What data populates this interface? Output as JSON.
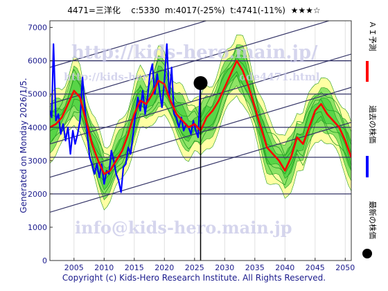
{
  "header": {
    "code_name": "4471=三洋化",
    "current": "c:5330",
    "mid": "m:4017(-25%)",
    "target": "t:4741(-11%)",
    "stars": "★★★☆"
  },
  "side_label": "Generated on Monday 2026/1/5.",
  "footer": "Copyright (c) Kids-Hero Research Institute. All Rights Reserved.",
  "watermarks": {
    "url": "http://kids-hero.main.jp/",
    "url_small": "http://kids-hero",
    "code_small": "ode4471.html",
    "email": "info@kids-hero.main.jp"
  },
  "legend": {
    "ai_forecast": "ＡＩ予測",
    "past_price": "過去の株価",
    "latest_price": "最新の株価"
  },
  "colors": {
    "ai_forecast": "#ff0000",
    "past_price": "#0000ff",
    "latest_price": "#000000",
    "band_green": "#33cc33",
    "band_yellow": "#ffff99",
    "trend_lines": "#333366",
    "axis_text": "#1a1a8c"
  },
  "chart_data": {
    "type": "line",
    "xlim": [
      2001,
      2051
    ],
    "ylim": [
      0,
      7200
    ],
    "x_ticks": [
      2005,
      2010,
      2015,
      2020,
      2025,
      2030,
      2035,
      2040,
      2045,
      2050
    ],
    "y_ticks": [
      0,
      1000,
      2000,
      3000,
      4000,
      5000,
      6000,
      7000
    ],
    "horizontal_lines": [
      2000,
      3100,
      4000,
      5000,
      6000
    ],
    "latest_point": {
      "x": 2026.0,
      "y": 5330
    },
    "series": [
      {
        "name": "過去の株価",
        "x": [
          2001,
          2001.3,
          2001.6,
          2002,
          2002.4,
          2002.8,
          2003.2,
          2003.6,
          2004,
          2004.4,
          2004.8,
          2005.2,
          2005.6,
          2006,
          2006.4,
          2006.8,
          2007.2,
          2007.6,
          2008,
          2008.4,
          2008.8,
          2009.2,
          2009.6,
          2010,
          2010.4,
          2010.8,
          2011.2,
          2011.6,
          2012,
          2012.4,
          2012.8,
          2013.2,
          2013.6,
          2014,
          2014.4,
          2014.8,
          2015.2,
          2015.6,
          2016,
          2016.4,
          2016.8,
          2017.2,
          2017.6,
          2018,
          2018.4,
          2018.8,
          2019.2,
          2019.6,
          2020,
          2020.4,
          2020.8,
          2021.2,
          2021.6,
          2022,
          2022.4,
          2022.8,
          2023.2,
          2023.6,
          2024,
          2024.4,
          2024.8,
          2025.2,
          2025.6,
          2026
        ],
        "values": [
          4500,
          4300,
          6500,
          4200,
          4400,
          3800,
          4100,
          3600,
          4000,
          3200,
          3900,
          3500,
          3800,
          4200,
          5500,
          4600,
          3800,
          3100,
          2900,
          2600,
          2900,
          2500,
          2900,
          2300,
          2700,
          2600,
          3300,
          3000,
          2600,
          2400,
          2050,
          2800,
          2900,
          3400,
          3200,
          3800,
          4400,
          4900,
          4500,
          5100,
          4400,
          4900,
          5600,
          5900,
          5000,
          5600,
          5100,
          4600,
          5400,
          6500,
          4900,
          5800,
          4400,
          4300,
          4000,
          4300,
          3900,
          4100,
          4000,
          3800,
          4200,
          3900,
          3700,
          5330
        ]
      },
      {
        "name": "ＡＩ予測",
        "x": [
          2001,
          2002,
          2003,
          2004,
          2005,
          2006,
          2007,
          2008,
          2009,
          2010,
          2011,
          2012,
          2013,
          2014,
          2015,
          2016,
          2017,
          2018,
          2019,
          2020,
          2021,
          2022,
          2023,
          2024,
          2025,
          2026,
          2027,
          2028,
          2029,
          2030,
          2031,
          2032,
          2033,
          2034,
          2035,
          2036,
          2037,
          2038,
          2039,
          2040,
          2041,
          2042,
          2043,
          2044,
          2045,
          2046,
          2047,
          2048,
          2049,
          2050,
          2051
        ],
        "values": [
          4000,
          4100,
          4300,
          4700,
          5100,
          4900,
          4200,
          3500,
          3000,
          2600,
          2700,
          3000,
          3300,
          3800,
          4400,
          4800,
          4700,
          5000,
          5400,
          5300,
          4800,
          4400,
          4200,
          4000,
          4100,
          3900,
          4300,
          4500,
          4800,
          5200,
          5600,
          6000,
          5700,
          5200,
          4600,
          4000,
          3400,
          3200,
          3000,
          2700,
          3100,
          3700,
          3500,
          4000,
          4500,
          4700,
          4400,
          4200,
          4000,
          3600,
          3100
        ]
      }
    ]
  }
}
